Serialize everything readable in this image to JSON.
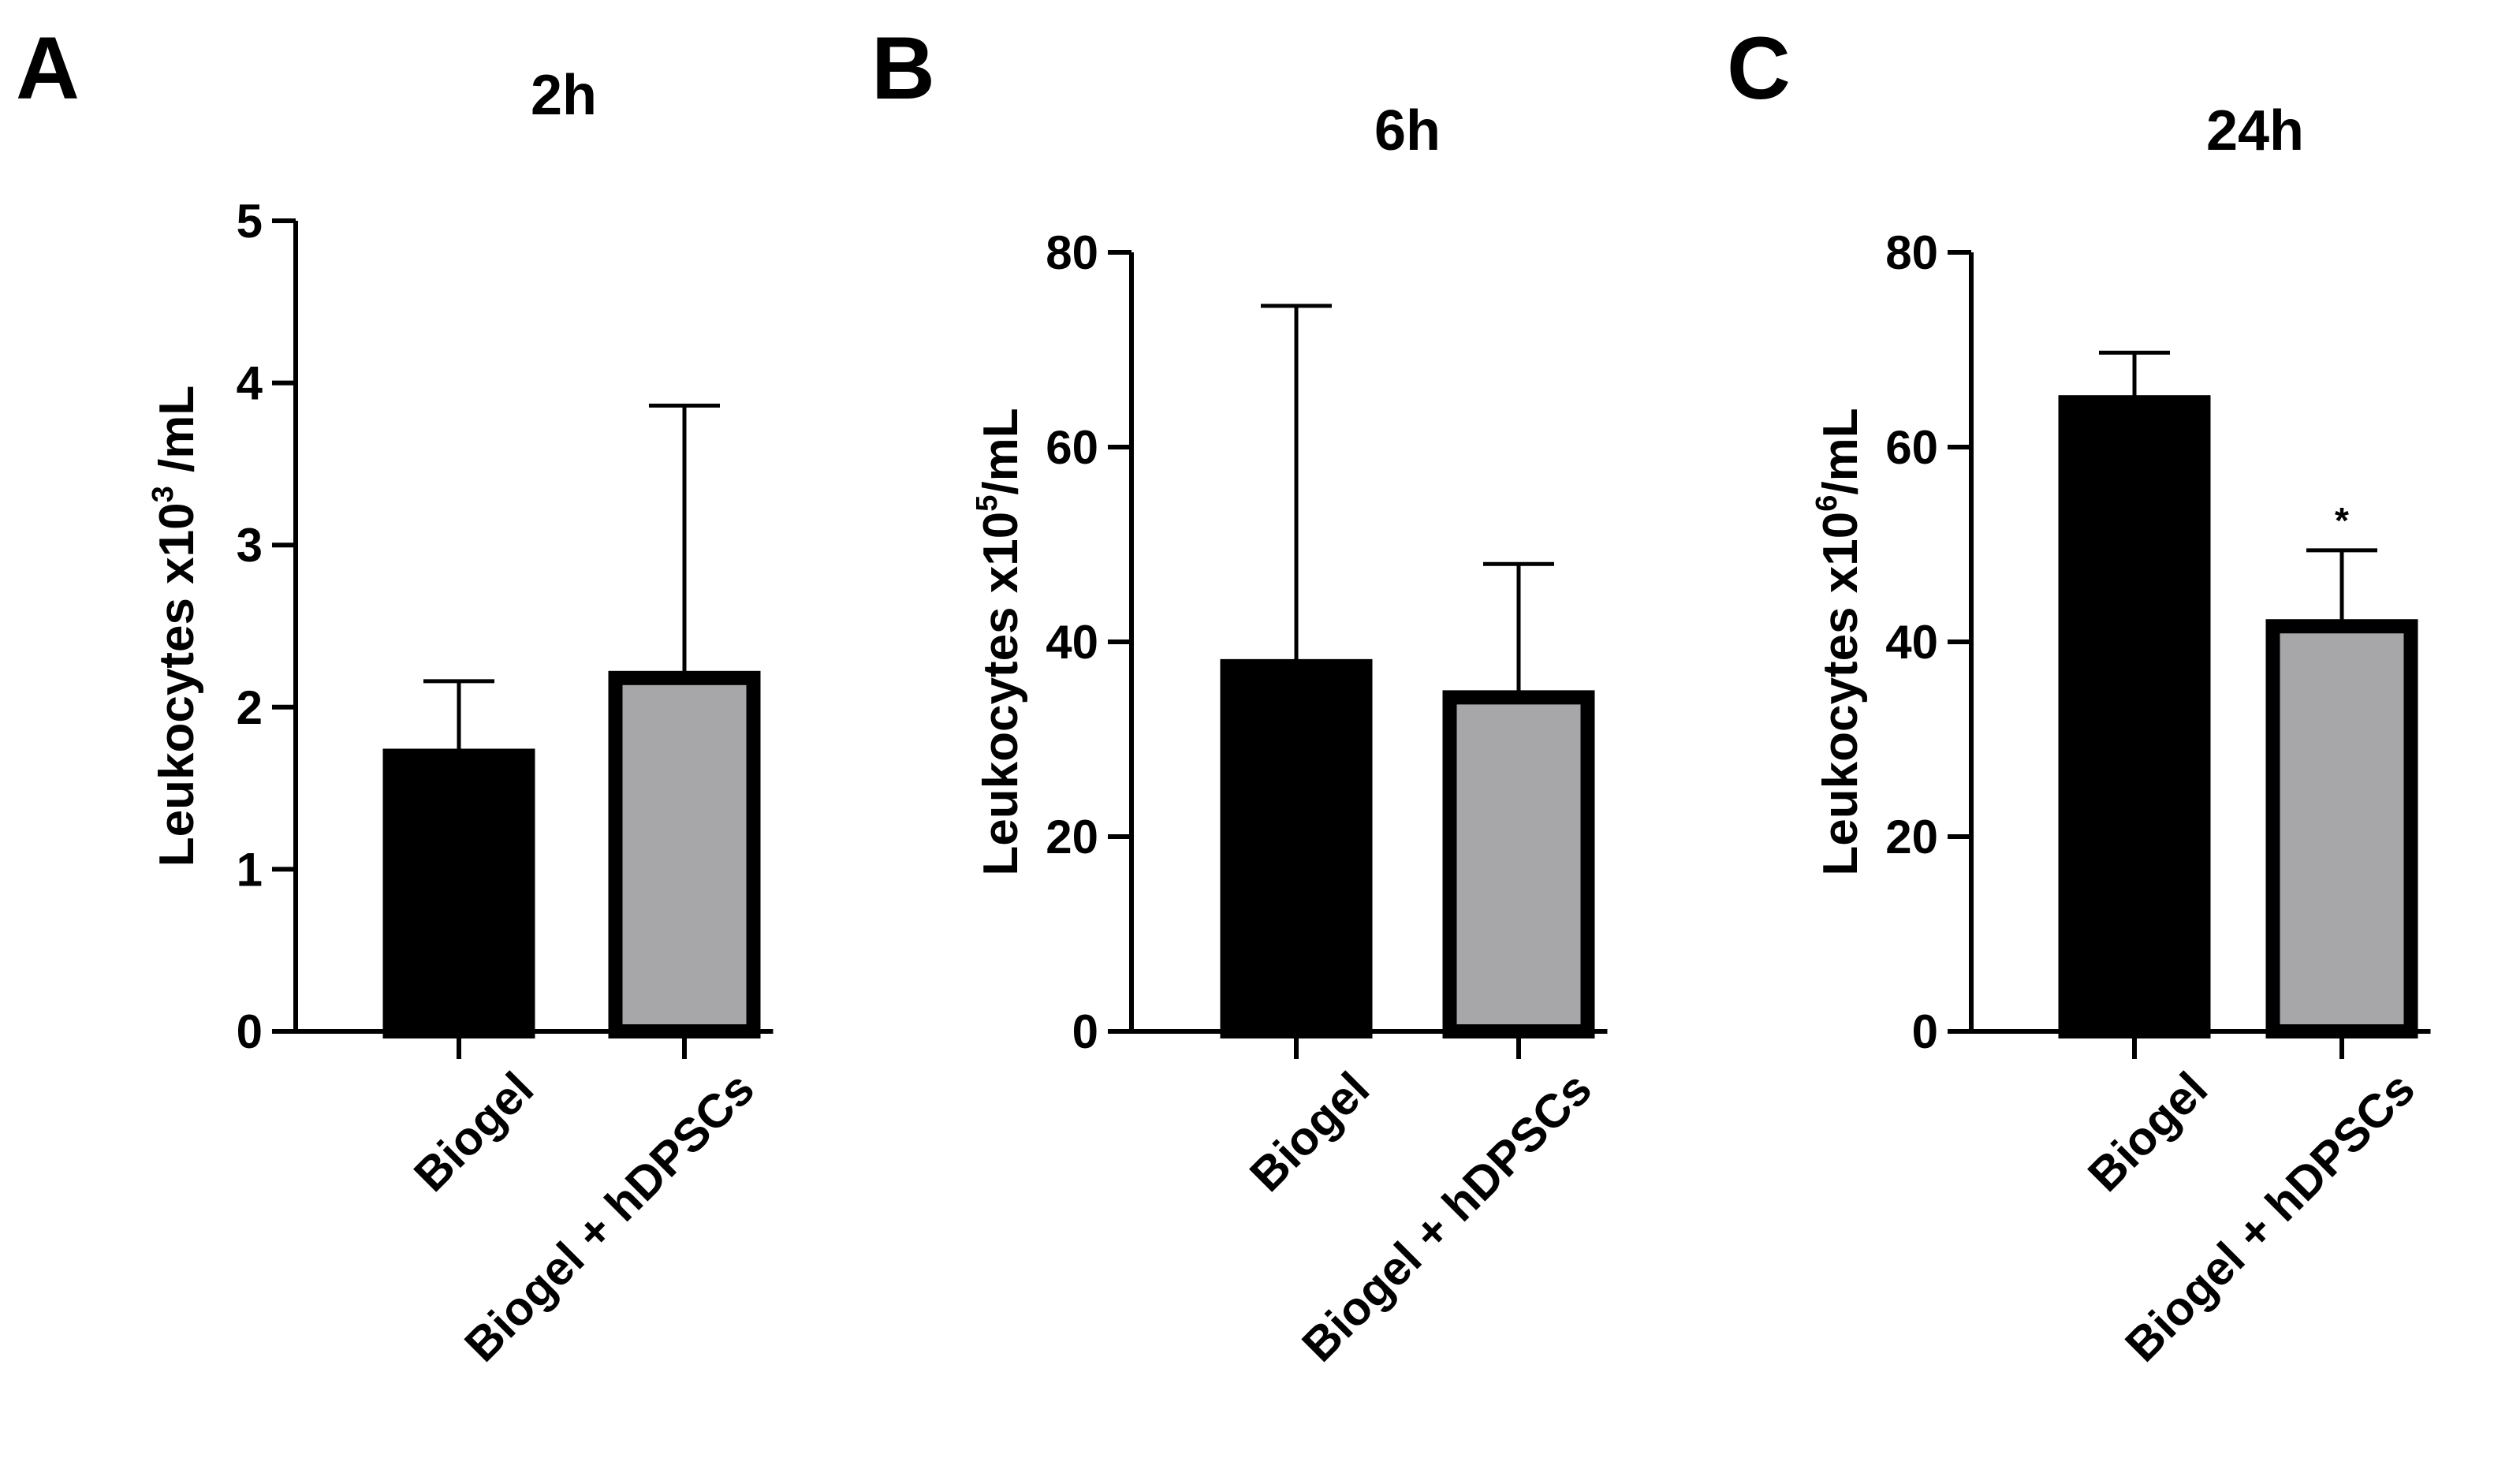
{
  "chart_data": [
    {
      "panel": "A",
      "type": "bar",
      "title": "2h",
      "categories": [
        "Biogel",
        "Biogel + hDPSCs"
      ],
      "values": [
        1.7,
        2.18
      ],
      "error_upper": [
        2.16,
        3.86
      ],
      "fills": [
        "#000000",
        "#a7a7aa"
      ],
      "ylabel": {
        "text": "Leukocytes  x10",
        "sup": "3",
        "suffix": " /mL"
      },
      "ylim": [
        0,
        5
      ],
      "yticks": [
        "0",
        "1",
        "2",
        "3",
        "4",
        "5"
      ],
      "significance": [
        "",
        ""
      ]
    },
    {
      "panel": "B",
      "type": "bar",
      "title": "6h",
      "categories": [
        "Biogel",
        "Biogel + hDPSCs"
      ],
      "values": [
        37.5,
        34.3
      ],
      "error_upper": [
        74.5,
        48.0
      ],
      "fills": [
        "#000000",
        "#a7a7aa"
      ],
      "ylabel": {
        "text": "Leukocytes  x10",
        "sup": "5",
        "suffix": "/mL"
      },
      "ylim": [
        0,
        80
      ],
      "yticks": [
        "0",
        "20",
        "40",
        "60",
        "80"
      ],
      "significance": [
        "",
        ""
      ]
    },
    {
      "panel": "C",
      "type": "bar",
      "title": "24h",
      "categories": [
        "Biogel",
        "Biogel + hDPSCs"
      ],
      "values": [
        64.6,
        41.6
      ],
      "error_upper": [
        69.7,
        49.4
      ],
      "fills": [
        "#000000",
        "#a7a7aa"
      ],
      "ylabel": {
        "text": "Leukocytes x10",
        "sup": "6",
        "suffix": "/mL"
      },
      "ylim": [
        0,
        80
      ],
      "yticks": [
        "0",
        "20",
        "40",
        "60",
        "80"
      ],
      "significance": [
        "",
        "*"
      ]
    }
  ]
}
